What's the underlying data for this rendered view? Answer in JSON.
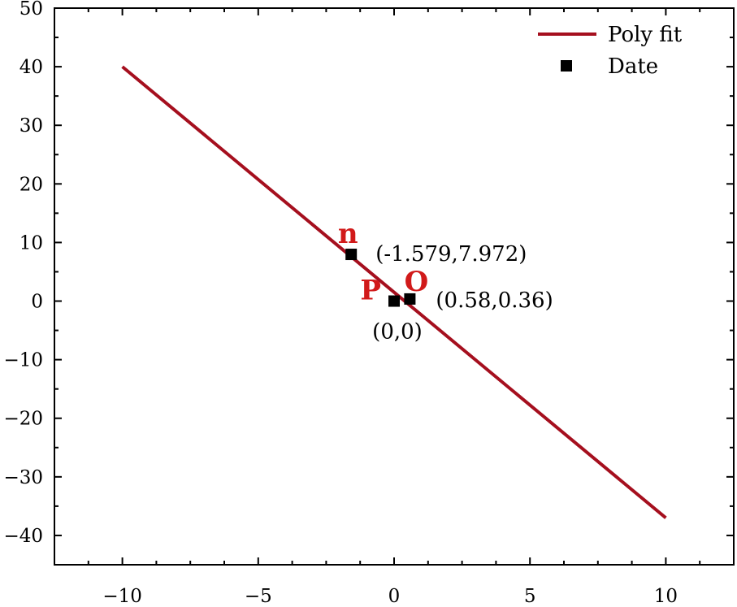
{
  "chart_data": {
    "type": "scatter",
    "title": "",
    "xlabel": "",
    "ylabel": "",
    "xlim": [
      -12.5,
      12.5
    ],
    "ylim": [
      -45,
      50
    ],
    "x_ticks": [
      -10,
      -5,
      0,
      5,
      10
    ],
    "x_tick_labels": [
      "−10",
      "−5",
      "0",
      "5",
      "10"
    ],
    "y_ticks": [
      -40,
      -30,
      -20,
      -10,
      0,
      10,
      20,
      30,
      40,
      50
    ],
    "y_tick_labels": [
      "−40",
      "−30",
      "−20",
      "−10",
      "0",
      "10",
      "20",
      "30",
      "40",
      "50"
    ],
    "grid": false,
    "legend_position": "top-right",
    "series": [
      {
        "name": "Poly fit",
        "kind": "line",
        "color": "#a50f1e",
        "x": [
          -10,
          10
        ],
        "y": [
          40,
          -37
        ]
      },
      {
        "name": "Date",
        "kind": "scatter",
        "color": "#000000",
        "marker": "square",
        "points": [
          {
            "x": -1.579,
            "y": 7.972,
            "letter": "n",
            "label": "(-1.579,7.972)"
          },
          {
            "x": 0,
            "y": 0,
            "letter": "P",
            "label": "(0,0)"
          },
          {
            "x": 0.58,
            "y": 0.36,
            "letter": "O",
            "label": "(0.58,0.36)"
          }
        ]
      }
    ],
    "annotation_color": "#d11a1a"
  }
}
